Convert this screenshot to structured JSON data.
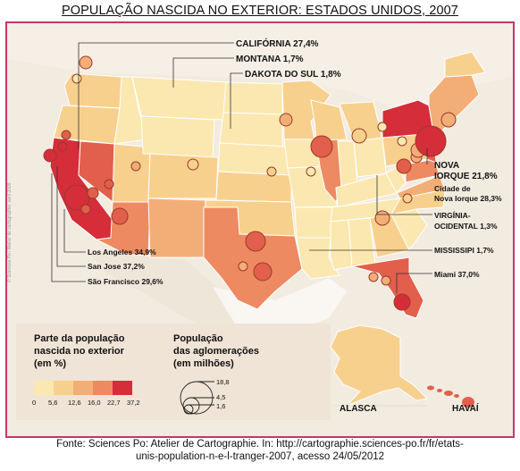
{
  "title": "POPULAÇÃO NASCIDA NO EXTERIOR: ESTADOS UNIDOS, 2007",
  "credit": "© Sciences Po / Atelier de cartographie, avril 2009",
  "colors": {
    "c0": "#fbe8b0",
    "c1": "#f8d08e",
    "c2": "#f3ae78",
    "c3": "#ed8a62",
    "c4": "#e25f4c",
    "c5": "#d52d3a",
    "ocean": "#ffffff",
    "land_other": "#efe4d6",
    "frame": "#c9356e"
  },
  "labels": {
    "california": "CALIFÓRNIA 27,4%",
    "montana": "MONTANA 1,7%",
    "dakota_sul": "DAKOTA DO SUL 1,8%",
    "nova_iorque_1": "NOVA",
    "nova_iorque_2": "IORQUE 21,8%",
    "cidade_ny_1": "Cidade de",
    "cidade_ny_2": "Nova Iorque 28,3%",
    "virginia_1": "VIRGÍNIA-",
    "virginia_2": "OCIDENTAL 1,3%",
    "mississipi": "MISSISSIPI 1,7%",
    "miami": "Miami 37,0%",
    "los_angeles": "Los Angeles 34,9%",
    "san_jose": "San Jose 37,2%",
    "san_francisco": "São Francisco 29,6%",
    "alasca": "ALASCA",
    "havai": "HAVAÍ"
  },
  "legend": {
    "share_title_1": "Parte da população",
    "share_title_2": "nascida no exterior",
    "share_title_3": "(em %)",
    "ticks": [
      "0",
      "5,6",
      "12,6",
      "16,0",
      "22,7",
      "37,2"
    ],
    "pop_title_1": "População",
    "pop_title_2": "das aglomerações",
    "pop_title_3": "(em milhões)",
    "pop_values": [
      "18,8",
      "4,5",
      "1,6"
    ]
  },
  "source_line_1": "Fonte: Sciences Po: Atelier de Cartographie. In: http://cartographie.sciences-po.fr/fr/etats-",
  "source_line_2": "unis-population-n-e-l-tranger-2007, acesso 24/05/2012"
}
